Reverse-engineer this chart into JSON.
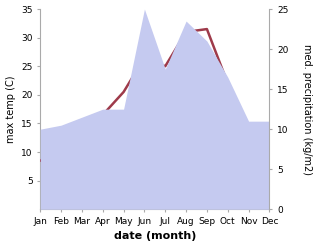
{
  "months": [
    "Jan",
    "Feb",
    "Mar",
    "Apr",
    "May",
    "Jun",
    "Jul",
    "Aug",
    "Sep",
    "Oct",
    "Nov",
    "Dec"
  ],
  "month_positions": [
    0,
    1,
    2,
    3,
    4,
    5,
    6,
    7,
    8,
    9,
    10,
    11
  ],
  "temperature": [
    8.5,
    9.5,
    13.0,
    16.5,
    20.5,
    26.5,
    25.0,
    31.0,
    31.5,
    22.0,
    13.0,
    8.5
  ],
  "precipitation": [
    10.0,
    10.5,
    11.5,
    12.5,
    12.5,
    25.0,
    17.5,
    23.5,
    21.0,
    16.5,
    11.0,
    11.0
  ],
  "temp_color": "#9e3a4a",
  "precip_fill_color": "#c5caf0",
  "temp_ylim": [
    0,
    35
  ],
  "precip_ylim": [
    0,
    25
  ],
  "temp_yticks": [
    5,
    10,
    15,
    20,
    25,
    30,
    35
  ],
  "precip_yticks": [
    0,
    5,
    10,
    15,
    20,
    25
  ],
  "xlabel": "date (month)",
  "ylabel_left": "max temp (C)",
  "ylabel_right": "med. precipitation (kg/m2)",
  "line_width": 1.8,
  "bg_color": "#ffffff",
  "spine_color": "#aaaaaa",
  "tick_fontsize": 6.5,
  "label_fontsize": 7,
  "xlabel_fontsize": 8
}
